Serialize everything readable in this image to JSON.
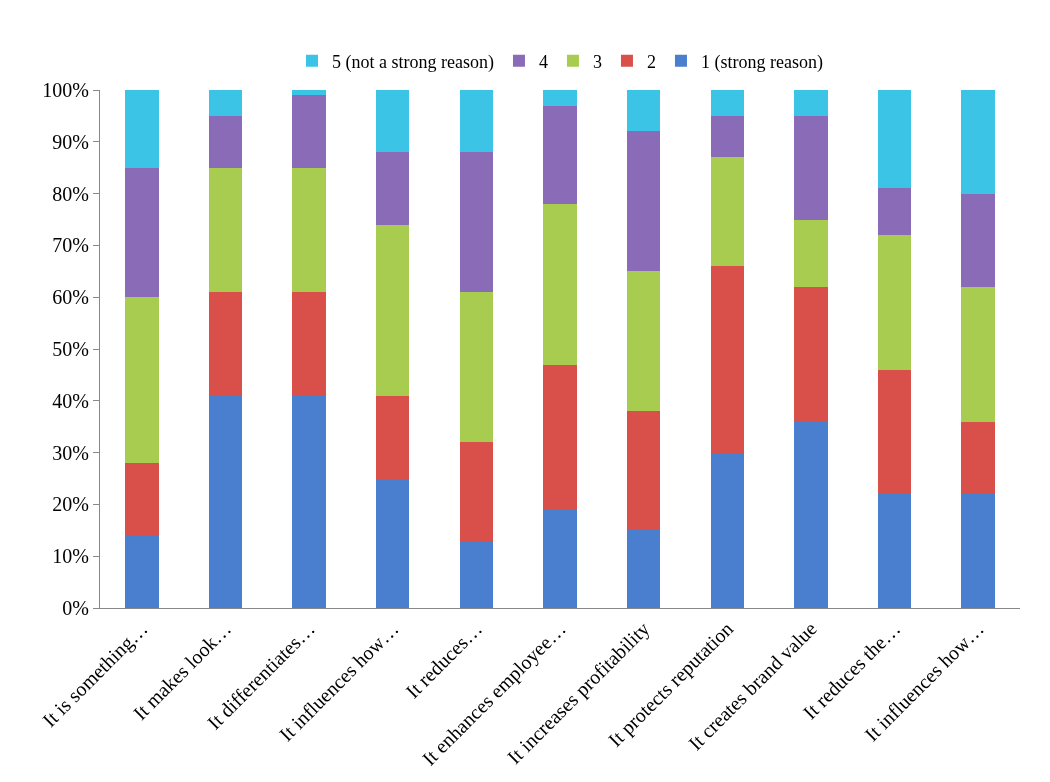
{
  "chart_data": {
    "type": "bar",
    "stacked": true,
    "categories": [
      "It is something…",
      "It makes look…",
      "It differentiates…",
      "It influences how…",
      "It reduces…",
      "It enhances employee…",
      "It increases profitability",
      "It protects reputation",
      "It creates brand value",
      "It reduces the…",
      "It influences how…"
    ],
    "series": [
      {
        "name": "1 (strong reason)",
        "color": "#4a7fd0",
        "values": [
          14,
          41,
          41,
          25,
          13,
          19,
          15,
          30,
          36,
          22,
          22
        ]
      },
      {
        "name": "2",
        "color": "#d9504a",
        "values": [
          14,
          20,
          20,
          16,
          19,
          28,
          23,
          36,
          26,
          24,
          14
        ]
      },
      {
        "name": "3",
        "color": "#a8cc50",
        "values": [
          32,
          24,
          24,
          33,
          29,
          31,
          27,
          21,
          13,
          26,
          26
        ]
      },
      {
        "name": "4",
        "color": "#8a6bb8",
        "values": [
          25,
          10,
          14,
          14,
          27,
          19,
          27,
          8,
          20,
          9,
          18
        ]
      },
      {
        "name": "5 (not a strong reason)",
        "color": "#3cc4e6",
        "values": [
          15,
          5,
          1,
          12,
          12,
          3,
          8,
          5,
          5,
          19,
          20
        ]
      }
    ],
    "ylim": [
      0,
      100
    ],
    "yticks": [
      {
        "value": 0,
        "label": "0%"
      },
      {
        "value": 10,
        "label": "10%"
      },
      {
        "value": 20,
        "label": "20%"
      },
      {
        "value": 30,
        "label": "30%"
      },
      {
        "value": 40,
        "label": "40%"
      },
      {
        "value": 50,
        "label": "50%"
      },
      {
        "value": 60,
        "label": "60%"
      },
      {
        "value": 70,
        "label": "70%"
      },
      {
        "value": 80,
        "label": "80%"
      },
      {
        "value": 90,
        "label": "90%"
      },
      {
        "value": 100,
        "label": "100%"
      }
    ],
    "grid": false,
    "legend": "top"
  }
}
